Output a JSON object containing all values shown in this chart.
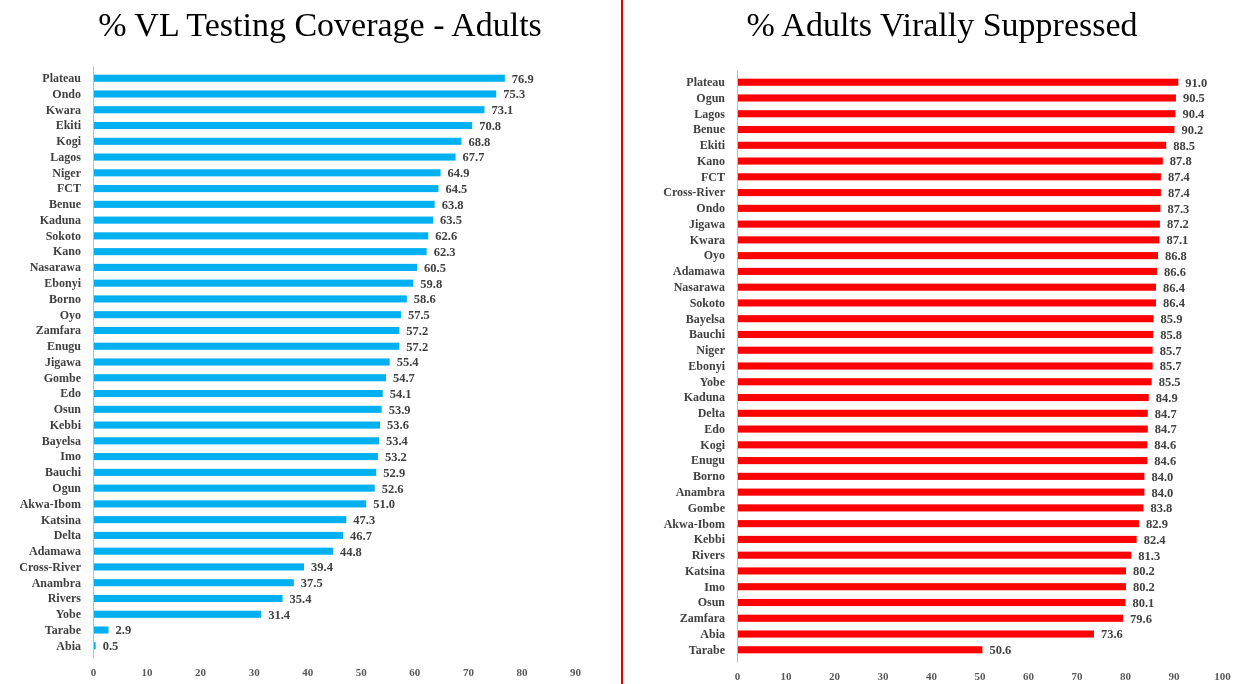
{
  "chart_data": [
    {
      "type": "bar",
      "orientation": "horizontal",
      "title": "% VL Testing Coverage - Adults",
      "categories": [
        "Plateau",
        "Ondo",
        "Kwara",
        "Ekiti",
        "Kogi",
        "Lagos",
        "Niger",
        "FCT",
        "Benue",
        "Kaduna",
        "Sokoto",
        "Kano",
        "Nasarawa",
        "Ebonyi",
        "Borno",
        "Oyo",
        "Zamfara",
        "Enugu",
        "Jigawa",
        "Gombe",
        "Edo",
        "Osun",
        "Kebbi",
        "Bayelsa",
        "Imo",
        "Bauchi",
        "Ogun",
        "Akwa-Ibom",
        "Katsina",
        "Delta",
        "Adamawa",
        "Cross-River",
        "Anambra",
        "Rivers",
        "Yobe",
        "Tarabe",
        "Abia"
      ],
      "values": [
        76.9,
        75.3,
        73.1,
        70.8,
        68.8,
        67.7,
        64.9,
        64.5,
        63.8,
        63.5,
        62.6,
        62.3,
        60.5,
        59.8,
        58.6,
        57.5,
        57.2,
        57.2,
        55.4,
        54.7,
        54.1,
        53.9,
        53.6,
        53.4,
        53.2,
        52.9,
        52.6,
        51.0,
        47.3,
        46.7,
        44.8,
        39.4,
        37.5,
        35.4,
        31.4,
        2.9,
        0.5
      ],
      "value_labels": [
        "76.9",
        "75.3",
        "73.1",
        "70.8",
        "68.8",
        "67.7",
        "64.9",
        "64.5",
        "63.8",
        "63.5",
        "62.6",
        "62.3",
        "60.5",
        "59.8",
        "58.6",
        "57.5",
        "57.2",
        "57.2",
        "55.4",
        "54.7",
        "54.1",
        "53.9",
        "53.6",
        "53.4",
        "53.2",
        "52.9",
        "52.6",
        "51.0",
        "47.3",
        "46.7",
        "44.8",
        "39.4",
        "37.5",
        "35.4",
        "31.4",
        "2.9",
        "0.5"
      ],
      "color": "#00b0f0",
      "xlim": [
        0,
        90
      ],
      "xticks": [
        0,
        10,
        20,
        30,
        40,
        50,
        60,
        70,
        80,
        90
      ]
    },
    {
      "type": "bar",
      "orientation": "horizontal",
      "title": "% Adults Virally Suppressed",
      "categories": [
        "Plateau",
        "Ogun",
        "Lagos",
        "Benue",
        "Ekiti",
        "Kano",
        "FCT",
        "Cross-River",
        "Ondo",
        "Jigawa",
        "Kwara",
        "Oyo",
        "Adamawa",
        "Nasarawa",
        "Sokoto",
        "Bayelsa",
        "Bauchi",
        "Niger",
        "Ebonyi",
        "Yobe",
        "Kaduna",
        "Delta",
        "Edo",
        "Kogi",
        "Enugu",
        "Borno",
        "Anambra",
        "Gombe",
        "Akwa-Ibom",
        "Kebbi",
        "Rivers",
        "Katsina",
        "Imo",
        "Osun",
        "Zamfara",
        "Abia",
        "Tarabe"
      ],
      "values": [
        91.0,
        90.5,
        90.4,
        90.2,
        88.5,
        87.8,
        87.4,
        87.4,
        87.3,
        87.2,
        87.1,
        86.8,
        86.6,
        86.4,
        86.4,
        85.9,
        85.8,
        85.7,
        85.7,
        85.5,
        84.9,
        84.7,
        84.7,
        84.6,
        84.6,
        84.0,
        84.0,
        83.8,
        82.9,
        82.4,
        81.3,
        80.2,
        80.2,
        80.1,
        79.6,
        73.6,
        50.6
      ],
      "value_labels": [
        "91.0",
        "90.5",
        "90.4",
        "90.2",
        "88.5",
        "87.8",
        "87.4",
        "87.4",
        "87.3",
        "87.2",
        "87.1",
        "86.8",
        "86.6",
        "86.4",
        "86.4",
        "85.9",
        "85.8",
        "85.7",
        "85.7",
        "85.5",
        "84.9",
        "84.7",
        "84.7",
        "84.6",
        "84.6",
        "84.0",
        "84.0",
        "83.8",
        "82.9",
        "82.4",
        "81.3",
        "80.2",
        "80.2",
        "80.1",
        "79.6",
        "73.6",
        "50.6"
      ],
      "color": "#ff0000",
      "xlim": [
        0,
        100
      ],
      "xticks": [
        0,
        10,
        20,
        30,
        40,
        50,
        60,
        70,
        80,
        90,
        100
      ]
    }
  ]
}
